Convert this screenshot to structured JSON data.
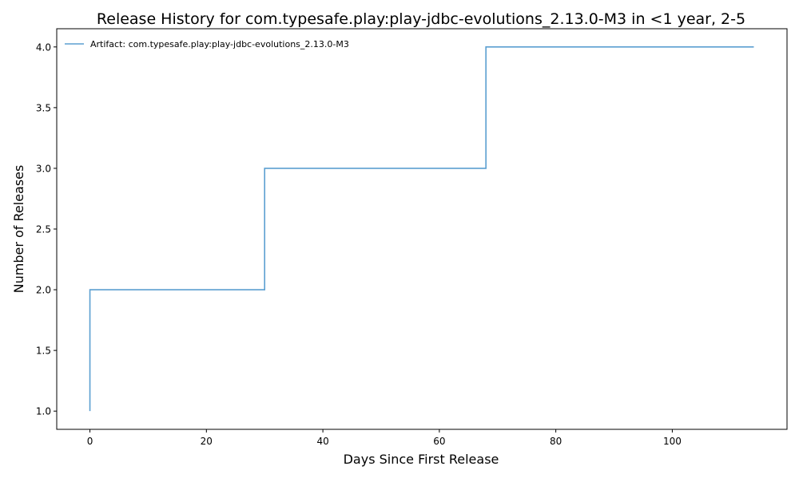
{
  "chart_data": {
    "type": "line",
    "title": "Release History for com.typesafe.play:play-jdbc-evolutions_2.13.0-M3 in <1 year, 2-5",
    "xlabel": "Days Since First Release",
    "ylabel": "Number of Releases",
    "xlim": [
      -5.7,
      119.7
    ],
    "ylim": [
      0.85,
      4.15
    ],
    "xticks": [
      0,
      20,
      40,
      60,
      80,
      100
    ],
    "xtick_labels": [
      "0",
      "20",
      "40",
      "60",
      "80",
      "100"
    ],
    "yticks": [
      1.0,
      1.5,
      2.0,
      2.5,
      3.0,
      3.5,
      4.0
    ],
    "ytick_labels": [
      "1.0",
      "1.5",
      "2.0",
      "2.5",
      "3.0",
      "3.5",
      "4.0"
    ],
    "grid": false,
    "legend_position": "upper-left",
    "step": "post",
    "series": [
      {
        "name": "Artifact: com.typesafe.play:play-jdbc-evolutions_2.13.0-M3",
        "color": "#5b9fd1",
        "x": [
          0,
          0,
          30,
          68,
          114
        ],
        "y": [
          1,
          2,
          3,
          4,
          4
        ]
      }
    ]
  }
}
